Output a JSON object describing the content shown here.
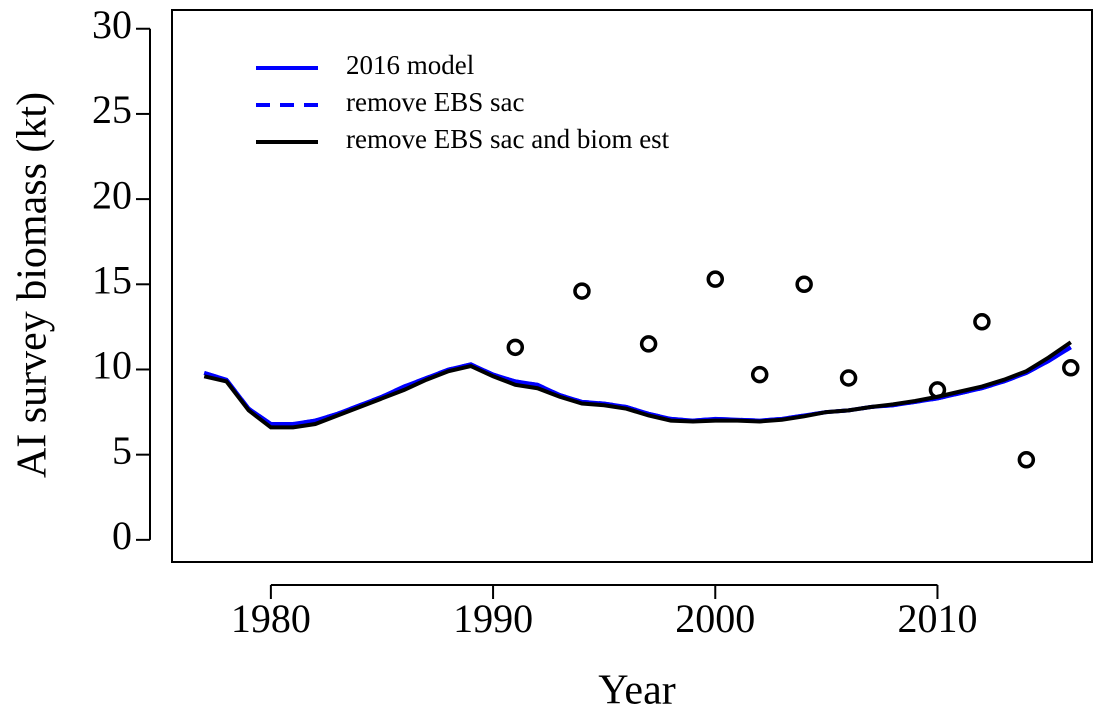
{
  "chart_data": {
    "type": "line",
    "x_label": "Year",
    "y_label": "AI survey biomass (kt)",
    "x": [
      1977,
      1978,
      1979,
      1980,
      1981,
      1982,
      1983,
      1984,
      1985,
      1986,
      1987,
      1988,
      1989,
      1990,
      1991,
      1992,
      1993,
      1994,
      1995,
      1996,
      1997,
      1998,
      1999,
      2000,
      2001,
      2002,
      2003,
      2004,
      2005,
      2006,
      2007,
      2008,
      2009,
      2010,
      2011,
      2012,
      2013,
      2014,
      2015,
      2016
    ],
    "series": [
      {
        "name": "2016 model",
        "color": "#0000ff",
        "linestyle": "solid",
        "values": [
          9.8,
          9.4,
          7.7,
          6.8,
          6.8,
          7.0,
          7.4,
          7.9,
          8.4,
          9.0,
          9.5,
          10.0,
          10.3,
          9.7,
          9.3,
          9.1,
          8.5,
          8.1,
          8.0,
          7.8,
          7.4,
          7.1,
          7.0,
          7.1,
          7.05,
          7.0,
          7.1,
          7.3,
          7.5,
          7.6,
          7.8,
          7.9,
          8.1,
          8.3,
          8.6,
          8.9,
          9.3,
          9.8,
          10.5,
          11.3
        ]
      },
      {
        "name": "remove EBS sac",
        "color": "#0000ff",
        "linestyle": "dashed",
        "values": [
          9.8,
          9.4,
          7.7,
          6.8,
          6.8,
          7.0,
          7.4,
          7.9,
          8.4,
          9.0,
          9.5,
          10.0,
          10.3,
          9.7,
          9.3,
          9.1,
          8.5,
          8.1,
          8.0,
          7.8,
          7.4,
          7.1,
          7.0,
          7.1,
          7.05,
          7.0,
          7.1,
          7.3,
          7.5,
          7.6,
          7.8,
          7.9,
          8.1,
          8.3,
          8.6,
          8.9,
          9.3,
          9.8,
          10.5,
          11.3
        ]
      },
      {
        "name": "remove EBS sac and biom est",
        "color": "#000000",
        "linestyle": "solid",
        "values": [
          9.6,
          9.3,
          7.6,
          6.6,
          6.6,
          6.8,
          7.3,
          7.8,
          8.3,
          8.8,
          9.4,
          9.9,
          10.2,
          9.6,
          9.1,
          8.9,
          8.4,
          8.0,
          7.9,
          7.7,
          7.3,
          7.0,
          6.95,
          7.0,
          7.0,
          6.95,
          7.05,
          7.25,
          7.5,
          7.6,
          7.8,
          7.95,
          8.15,
          8.4,
          8.7,
          9.0,
          9.4,
          9.9,
          10.7,
          11.6
        ]
      }
    ],
    "markers": {
      "x": [
        1991,
        1994,
        1997,
        2000,
        2002,
        2004,
        2006,
        2010,
        2012,
        2014,
        2016
      ],
      "values": [
        11.3,
        14.6,
        11.5,
        15.3,
        9.7,
        15.0,
        9.5,
        8.8,
        12.8,
        4.7,
        10.1
      ]
    },
    "xlim": [
      1975.55,
      2017
    ],
    "ylim": [
      -1.3,
      31.1
    ],
    "xticks": [
      1980,
      1990,
      2000,
      2010
    ],
    "yticks": [
      0,
      5,
      10,
      15,
      20,
      25,
      30
    ]
  }
}
